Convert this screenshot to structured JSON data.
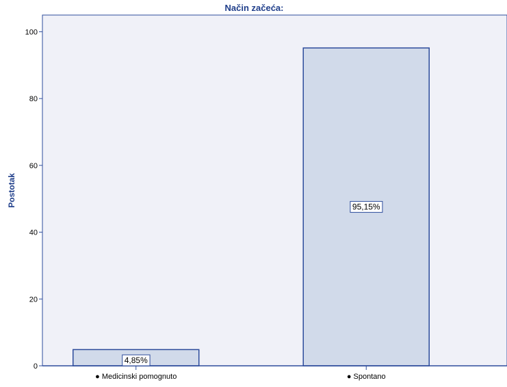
{
  "colors": {
    "plot_bg": "#f0f1f8",
    "bar_fill": "#d1daea",
    "bar_stroke": "#2c4b9b",
    "axis": "#2c4b9b",
    "text": "#1f3e8a",
    "tick_text": "#000000",
    "label_bg": "#ffffff"
  },
  "chart_data": {
    "type": "bar",
    "title": "Način začeća:",
    "ylabel": "Postotak",
    "xlabel": "",
    "ylim": [
      0,
      105
    ],
    "yticks": [
      0,
      20,
      40,
      60,
      80,
      100
    ],
    "ytick_labels": [
      "0",
      "20",
      "40",
      "60",
      "80",
      "100"
    ],
    "grid": false,
    "categories": [
      "● Medicinski pomognuto",
      "● Spontano"
    ],
    "values": [
      4.85,
      95.15
    ],
    "data_labels": [
      "4,85%",
      "95,15%"
    ]
  }
}
